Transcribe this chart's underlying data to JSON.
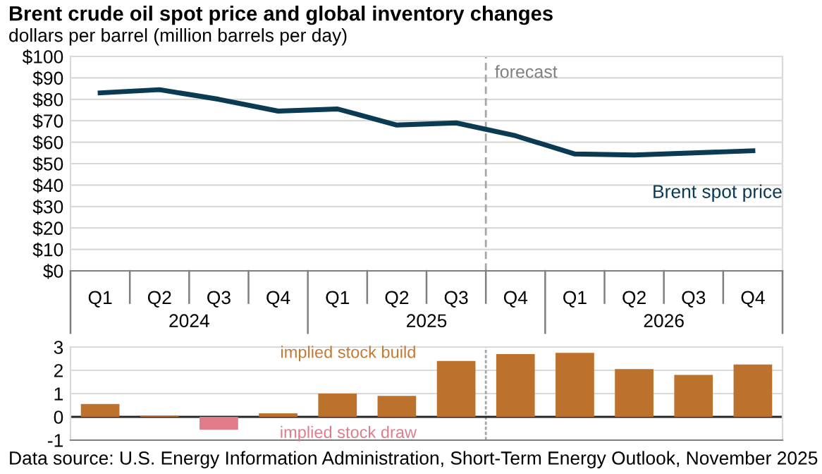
{
  "chart_data": [
    {
      "type": "line",
      "title": "Brent crude oil spot price and global inventory changes",
      "subtitle": "dollars per barrel (million barrels per day)",
      "categories": [
        "Q1",
        "Q2",
        "Q3",
        "Q4",
        "Q1",
        "Q2",
        "Q3",
        "Q4",
        "Q1",
        "Q2",
        "Q3",
        "Q4"
      ],
      "series": [
        {
          "name": "Brent spot price",
          "color": "#0b3a53",
          "values": [
            83,
            84.5,
            80,
            74.5,
            75.5,
            68,
            69,
            63,
            54.5,
            54,
            55,
            56
          ]
        }
      ],
      "ylim": [
        0,
        100
      ],
      "yticks": [
        {
          "value": 0,
          "label": "$0"
        },
        {
          "value": 10,
          "label": "$10"
        },
        {
          "value": 20,
          "label": "$20"
        },
        {
          "value": 30,
          "label": "$30"
        },
        {
          "value": 40,
          "label": "$40"
        },
        {
          "value": 50,
          "label": "$50"
        },
        {
          "value": 60,
          "label": "$60"
        },
        {
          "value": 70,
          "label": "$70"
        },
        {
          "value": 80,
          "label": "$80"
        },
        {
          "value": 90,
          "label": "$90"
        },
        {
          "value": 100,
          "label": "$100"
        }
      ],
      "annotations": [
        "forecast",
        "2024",
        "2025",
        "2026"
      ],
      "grid": "y",
      "marker": "none",
      "line_style": "solid"
    },
    {
      "type": "bar",
      "categories": [
        null,
        null,
        null,
        null,
        null,
        null,
        null,
        null,
        null,
        null,
        null,
        null
      ],
      "values": [
        0.55,
        0.05,
        -0.55,
        0.15,
        1.0,
        0.9,
        2.4,
        2.7,
        2.75,
        2.05,
        1.8,
        2.25
      ],
      "colors": [
        "#bc712c",
        "#bc712c",
        "#e07b8b",
        "#bc712c",
        "#bc712c",
        "#bc712c",
        "#bc712c",
        "#bc712c",
        "#bc712c",
        "#bc712c",
        "#bc712c",
        "#bc712c"
      ],
      "ylim": [
        -1,
        3
      ],
      "yticks": [
        -1,
        0,
        1,
        2,
        3
      ],
      "annotations": [
        "implied stock build",
        "implied stock draw",
        "Data source: U.S. Energy Information Administration, Short-Term Energy Outlook, November 2025"
      ],
      "grid": "y",
      "tick_labels": "y"
    }
  ]
}
